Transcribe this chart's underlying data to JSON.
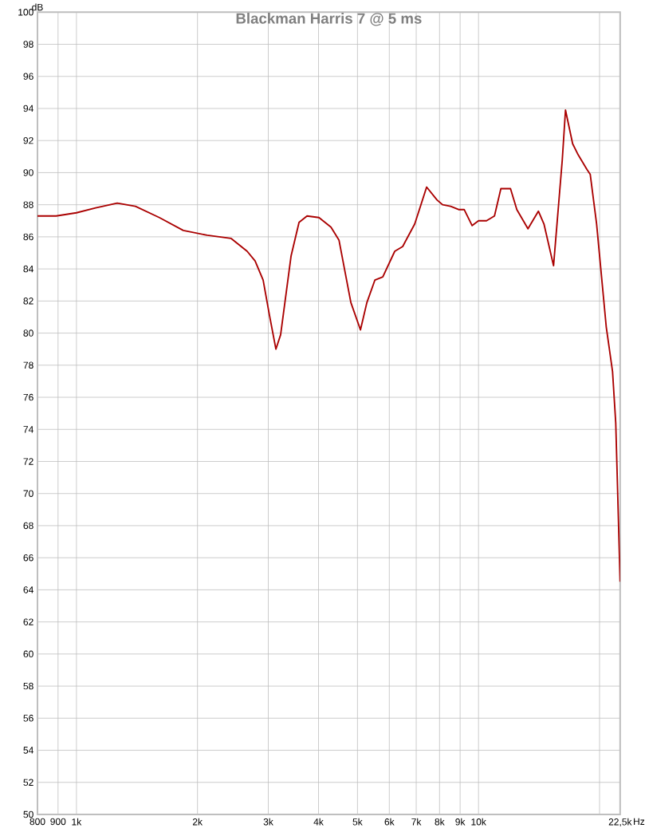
{
  "chart_data": {
    "type": "line",
    "title": "Blackman Harris 7 @ 5 ms",
    "ylabel": "dB",
    "log": "x",
    "grid": true,
    "marker": "none",
    "line_style": "solid",
    "xlim": [
      800,
      22500
    ],
    "ylim": [
      50,
      100
    ],
    "xticks": [
      {
        "value": 800,
        "label": "800"
      },
      {
        "value": 900,
        "label": "900"
      },
      {
        "value": 1000,
        "label": "1k"
      },
      {
        "value": 2000,
        "label": "2k"
      },
      {
        "value": 3000,
        "label": "3k"
      },
      {
        "value": 4000,
        "label": "4k"
      },
      {
        "value": 5000,
        "label": "5k"
      },
      {
        "value": 6000,
        "label": "6k"
      },
      {
        "value": 7000,
        "label": "7k"
      },
      {
        "value": 8000,
        "label": "8k"
      },
      {
        "value": 9000,
        "label": "9k"
      },
      {
        "value": 10000,
        "label": "10k"
      },
      {
        "value": 20000,
        "label": null
      },
      {
        "value": 22500,
        "label": "22,5k"
      }
    ],
    "xlabel": "Hz",
    "yticks": [
      50,
      52,
      54,
      56,
      58,
      60,
      62,
      64,
      66,
      68,
      70,
      72,
      74,
      76,
      78,
      80,
      82,
      84,
      86,
      88,
      90,
      92,
      94,
      96,
      98,
      100
    ],
    "x": [
      800,
      890,
      1000,
      1116,
      1263,
      1402,
      1608,
      1844,
      2115,
      2426,
      2658,
      2782,
      2913,
      3021,
      3134,
      3220,
      3418,
      3578,
      3746,
      4011,
      4296,
      4497,
      4815,
      5086,
      5276,
      5523,
      5780,
      6190,
      6479,
      6940,
      7430,
      7884,
      8141,
      8524,
      8921,
      9211,
      9641,
      10000,
      10467,
      10956,
      11366,
      12009,
      12453,
      13274,
      14089,
      14547,
      15369,
      16156,
      16456,
      17146,
      17705,
      18612,
      18958,
      19670,
      20778,
      21545,
      21943,
      22500
    ],
    "series": [
      {
        "color": "#aa0000",
        "values": [
          87.3,
          87.3,
          87.5,
          87.8,
          88.1,
          87.9,
          87.2,
          86.4,
          86.1,
          85.9,
          85.1,
          84.5,
          83.3,
          81.1,
          79.0,
          79.9,
          84.8,
          86.9,
          87.3,
          87.2,
          86.6,
          85.8,
          81.9,
          80.2,
          81.9,
          83.3,
          83.5,
          85.1,
          85.4,
          86.8,
          89.1,
          88.3,
          88.0,
          87.9,
          87.7,
          87.7,
          86.7,
          87.0,
          87.0,
          87.3,
          89.0,
          89.0,
          87.7,
          86.5,
          87.6,
          86.8,
          84.2,
          90.8,
          93.9,
          91.8,
          91.1,
          90.2,
          89.9,
          86.8,
          80.4,
          77.6,
          74.4,
          64.5
        ]
      }
    ]
  }
}
